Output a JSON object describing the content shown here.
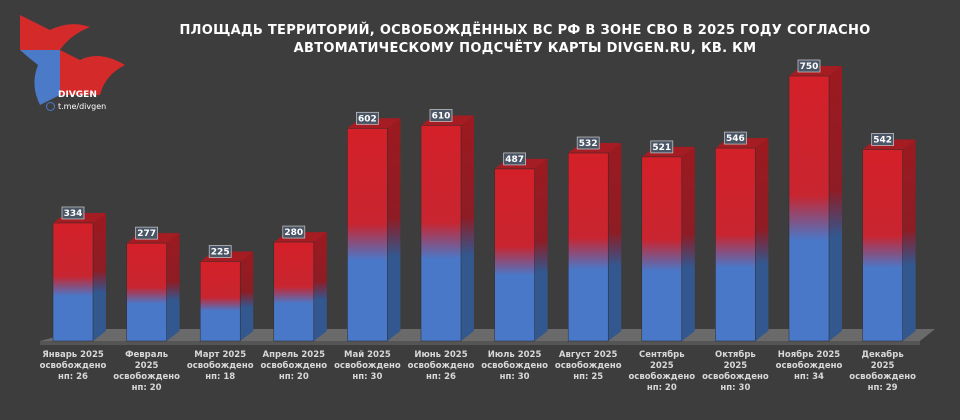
{
  "title": "ПЛОЩАДЬ ТЕРРИТОРИЙ, ОСВОБОЖДЁННЫХ ВС РФ В ЗОНЕ СВО В 2025 ГОДУ СОГЛАСНО АВТОМАТИЧЕСКОМУ ПОДСЧЁТУ КАРТЫ DIVGEN.RU, КВ. КМ",
  "brand": {
    "name": "DIVGEN",
    "link": "t.me/divgen",
    "colors": {
      "red": "#d42a2a",
      "blue": "#4a7ac8"
    }
  },
  "chart_data": {
    "type": "bar",
    "title": "ПЛОЩАДЬ ТЕРРИТОРИЙ, ОСВОБОЖДЁННЫХ ВС РФ В ЗОНЕ СВО В 2025 ГОДУ СОГЛАСНО АВТОМАТИЧЕСКОМУ ПОДСЧЁТУ КАРТЫ DIVGEN.RU, КВ. КМ",
    "categories": [
      [
        "Январь 2025",
        "освобождено",
        "нп: 26"
      ],
      [
        "Февраль",
        "2025",
        "освобождено",
        "нп: 20"
      ],
      [
        "Март 2025",
        "освобождено",
        "нп: 18"
      ],
      [
        "Апрель 2025",
        "освобождено",
        "нп: 20"
      ],
      [
        "Май 2025",
        "освобождено",
        "нп: 30"
      ],
      [
        "Июнь 2025",
        "освобождено",
        "нп: 26"
      ],
      [
        "Июль 2025",
        "освобождено",
        "нп: 30"
      ],
      [
        "Август 2025",
        "освобождено",
        "нп: 25"
      ],
      [
        "Сентябрь",
        "2025",
        "освобождено",
        "нп: 20"
      ],
      [
        "Октябрь",
        "2025",
        "освобождено",
        "нп: 30"
      ],
      [
        "Ноябрь 2025",
        "освобождено",
        "нп: 34"
      ],
      [
        "Декабрь",
        "2025",
        "освобождено",
        "нп: 29"
      ]
    ],
    "values": [
      334,
      277,
      225,
      280,
      602,
      610,
      487,
      532,
      521,
      546,
      750,
      542
    ],
    "ylim": [
      0,
      750
    ],
    "grid": false,
    "bar_style": "3d, gradient red top to blue bottom"
  }
}
